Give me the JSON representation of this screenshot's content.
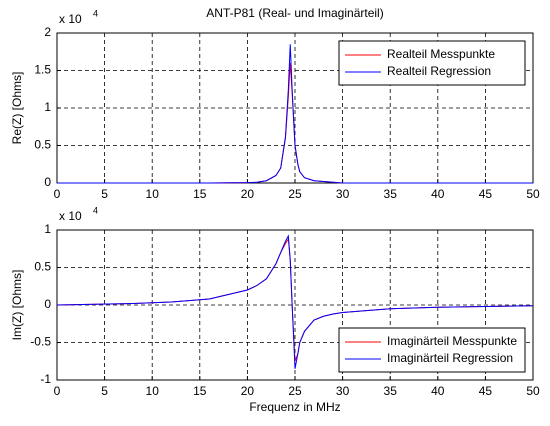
{
  "chart_data": [
    {
      "type": "line",
      "title": "ANT-P81 (Real- und Imaginärteil)",
      "ylabel": "Re(Z) [Ohms]",
      "y_multiplier": {
        "base": "x 10",
        "exponent": "4"
      },
      "x": [
        0,
        4,
        8,
        12,
        16,
        20,
        21,
        22,
        23,
        23.5,
        24,
        24.3,
        24.5,
        24.7,
        25,
        25.3,
        25.5,
        26,
        27,
        28,
        29,
        30,
        35,
        40,
        45,
        50
      ],
      "series": [
        {
          "name": "Realteil Messpunkte",
          "color": "#ff0000",
          "values": [
            0,
            0,
            0,
            0,
            0,
            0.005,
            0.01,
            0.03,
            0.1,
            0.2,
            0.6,
            1.15,
            1.6,
            1.2,
            0.5,
            0.25,
            0.15,
            0.07,
            0.03,
            0.02,
            0.01,
            0,
            0,
            0,
            0,
            0
          ]
        },
        {
          "name": "Realteil Regression",
          "color": "#0000ff",
          "values": [
            0,
            0,
            0,
            0,
            0,
            0.005,
            0.01,
            0.03,
            0.1,
            0.2,
            0.62,
            1.25,
            1.85,
            1.25,
            0.5,
            0.25,
            0.15,
            0.07,
            0.03,
            0.02,
            0.01,
            0,
            0,
            0,
            0,
            0
          ]
        }
      ],
      "xlim": [
        0,
        50
      ],
      "ylim": [
        0,
        2
      ],
      "xticks": [
        0,
        5,
        10,
        15,
        20,
        25,
        30,
        35,
        40,
        45,
        50
      ],
      "yticks": [
        0,
        0.5,
        1,
        1.5,
        2
      ],
      "grid": true,
      "legend": "upper-right"
    },
    {
      "type": "line",
      "xlabel": "Frequenz in MHz",
      "ylabel": "Im(Z) [Ohms]",
      "y_multiplier": {
        "base": "x 10",
        "exponent": "4"
      },
      "x": [
        0,
        4,
        8,
        12,
        16,
        20,
        21,
        22,
        23,
        23.5,
        24,
        24.3,
        24.5,
        24.7,
        25,
        25.3,
        25.5,
        26,
        27,
        28,
        29,
        30,
        35,
        40,
        45,
        50
      ],
      "series": [
        {
          "name": "Imaginärteil Messpunkte",
          "color": "#ff0000",
          "values": [
            0,
            0.01,
            0.02,
            0.04,
            0.08,
            0.2,
            0.26,
            0.35,
            0.55,
            0.7,
            0.82,
            0.88,
            0.6,
            0,
            -0.75,
            -0.65,
            -0.5,
            -0.35,
            -0.2,
            -0.15,
            -0.12,
            -0.1,
            -0.05,
            -0.03,
            -0.02,
            -0.01
          ]
        },
        {
          "name": "Imaginärteil Regression",
          "color": "#0000ff",
          "values": [
            0,
            0.01,
            0.02,
            0.04,
            0.08,
            0.2,
            0.26,
            0.35,
            0.55,
            0.7,
            0.85,
            0.92,
            0.6,
            0,
            -0.85,
            -0.65,
            -0.5,
            -0.35,
            -0.2,
            -0.15,
            -0.12,
            -0.1,
            -0.05,
            -0.03,
            -0.02,
            -0.01
          ]
        }
      ],
      "xlim": [
        0,
        50
      ],
      "ylim": [
        -1,
        1
      ],
      "xticks": [
        0,
        5,
        10,
        15,
        20,
        25,
        30,
        35,
        40,
        45,
        50
      ],
      "yticks": [
        -1,
        -0.5,
        0,
        0.5,
        1
      ],
      "grid": true,
      "legend": "lower-right"
    }
  ]
}
